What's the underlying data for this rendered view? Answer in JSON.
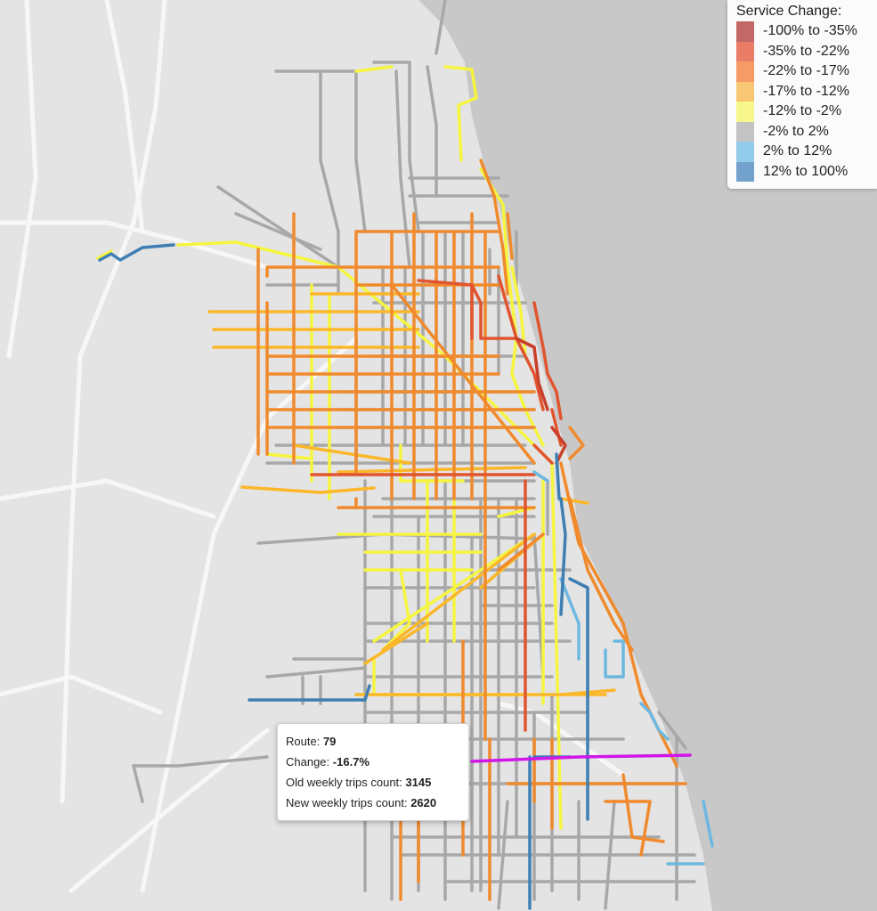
{
  "colors": {
    "land": "#e4e4e4",
    "water": "#c8c8c8",
    "highway": "#f7f7f7",
    "gray_route": "#a3a3a3",
    "purple_highlight": "#d215e8"
  },
  "legend": {
    "title": "Service Change:",
    "items": [
      {
        "label": "-100% to -35%",
        "color": "#b84c4c"
      },
      {
        "label": "-35% to -22%",
        "color": "#e8654a"
      },
      {
        "label": "-22% to -17%",
        "color": "#f58a4a"
      },
      {
        "label": "-17% to -12%",
        "color": "#f8bd5a"
      },
      {
        "label": "-12% to -2%",
        "color": "#f7f67a"
      },
      {
        "label": "-2% to 2%",
        "color": "#b8b8b8"
      },
      {
        "label": "2% to 12%",
        "color": "#7fc3e6"
      },
      {
        "label": "12% to 100%",
        "color": "#5b92c4"
      }
    ]
  },
  "tooltip": {
    "route_label": "Route:",
    "route_value": "79",
    "change_label": "Change:",
    "change_value": "-16.7%",
    "old_label": "Old weekly trips count:",
    "old_value": "3145",
    "new_label": "New weekly trips count:",
    "new_value": "2620"
  }
}
